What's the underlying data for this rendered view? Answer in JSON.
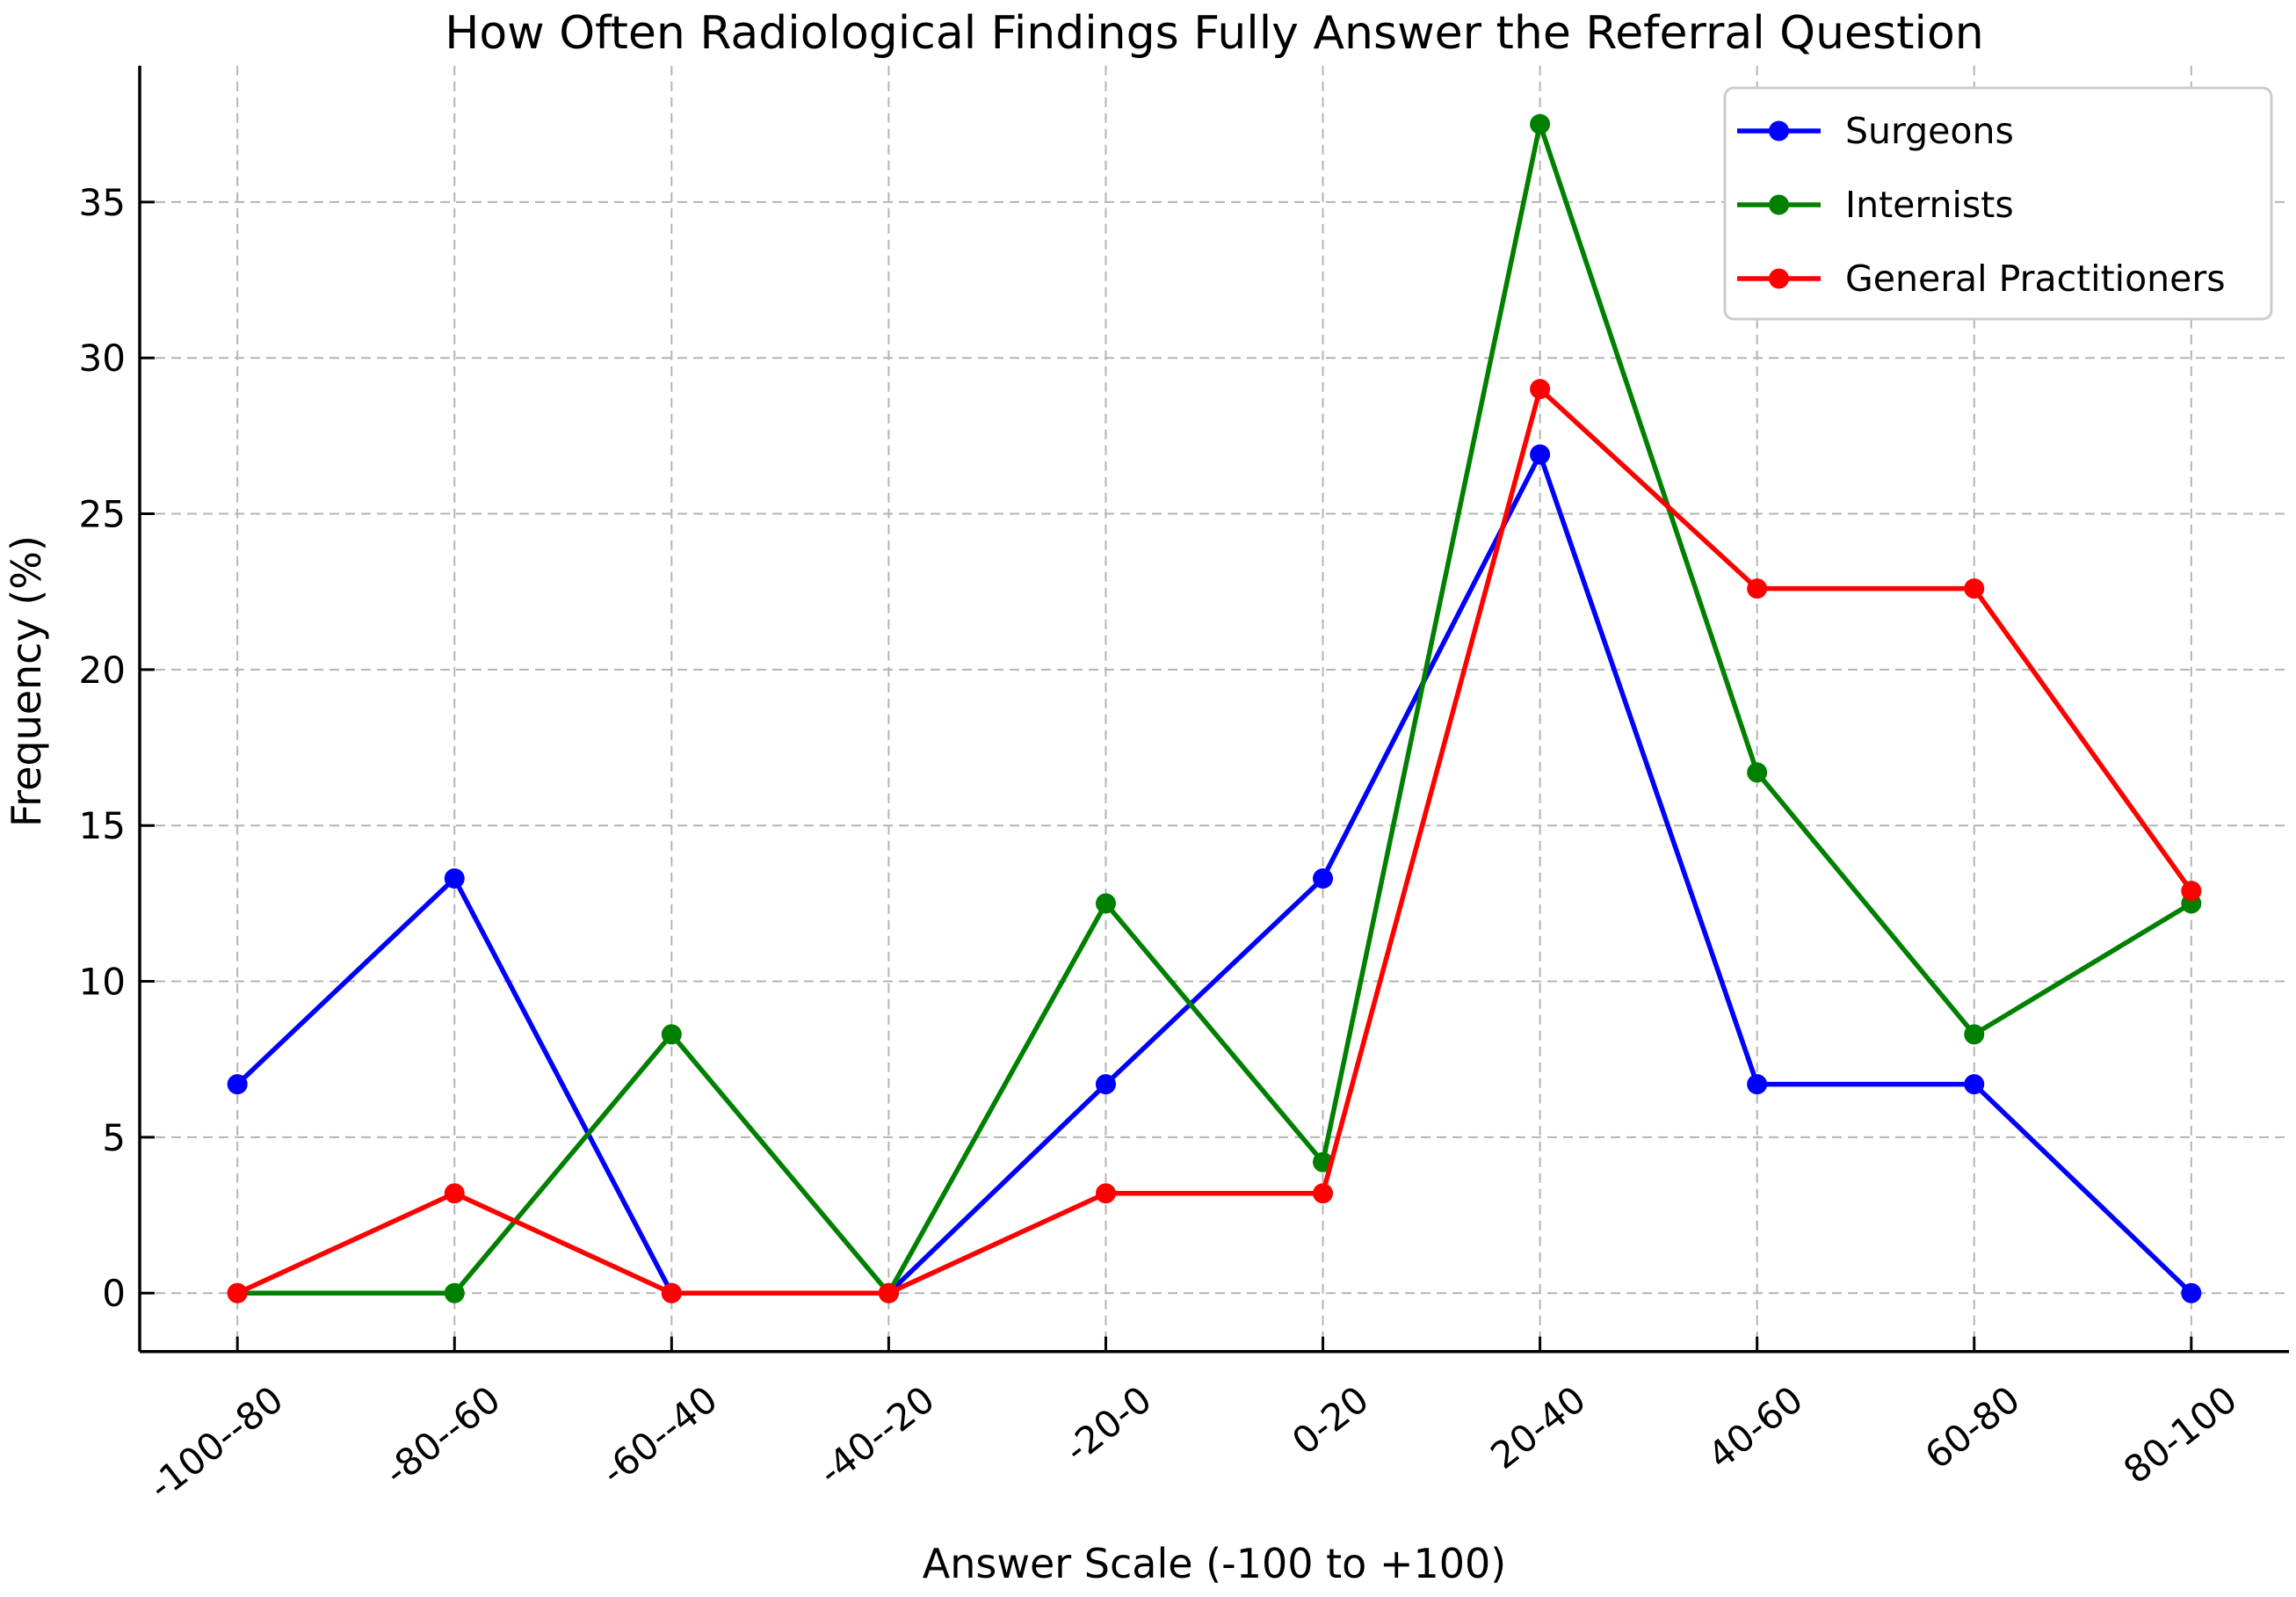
{
  "chart_data": {
    "type": "line",
    "title": "How Often Radiological Findings Fully Answer the Referral Question",
    "xlabel": "Answer Scale (-100 to +100)",
    "ylabel": "Frequency (%)",
    "categories": [
      "-100--80",
      "-80--60",
      "-60--40",
      "-40--20",
      "-20-0",
      "0-20",
      "20-40",
      "40-60",
      "60-80",
      "80-100"
    ],
    "series": [
      {
        "name": "Surgeons",
        "color": "#0000ff",
        "values": [
          6.7,
          13.3,
          0,
          0,
          6.7,
          13.3,
          26.9,
          6.7,
          6.7,
          0
        ]
      },
      {
        "name": "Internists",
        "color": "#008000",
        "values": [
          0,
          0,
          8.3,
          0,
          12.5,
          4.2,
          37.5,
          16.7,
          8.3,
          12.5
        ]
      },
      {
        "name": "General Practitioners",
        "color": "#ff0000",
        "values": [
          0,
          3.2,
          0,
          0,
          3.2,
          3.2,
          29.0,
          22.6,
          22.6,
          12.9
        ]
      }
    ],
    "ylim": [
      -1.875,
      39.375
    ],
    "yticks": [
      0,
      5,
      10,
      15,
      20,
      25,
      30,
      35
    ],
    "grid": true,
    "grid_style": "dashed",
    "legend_position": "upper right"
  },
  "style": {
    "background": "#ffffff",
    "grid_color": "#b4b4b4",
    "spine_color": "#000000",
    "legend_border_color": "#cccccc",
    "legend_background": "#ffffff"
  }
}
